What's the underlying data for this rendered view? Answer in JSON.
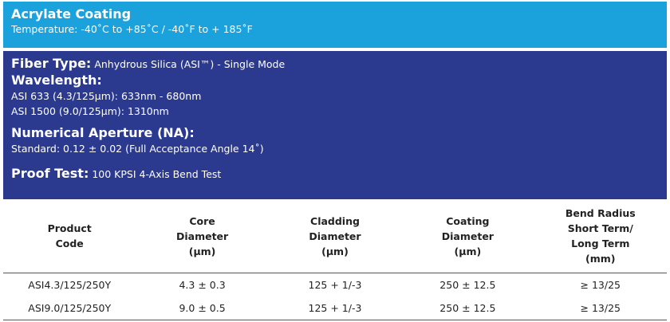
{
  "header": {
    "title": "Acrylate Coating",
    "subtitle": "Temperature:  -40˚C to +85˚C / -40˚F to + 185˚F"
  },
  "specs": {
    "fiber_type": {
      "label": "Fiber Type:",
      "value": "Anhydrous Silica (ASI™) - Single Mode"
    },
    "wavelength": {
      "label": "Wavelength:",
      "lines": [
        "ASI 633 (4.3/125μm):  633nm - 680nm",
        "ASI 1500 (9.0/125μm):  1310nm"
      ]
    },
    "numerical_aperture": {
      "label": "Numerical Aperture (NA):",
      "lines": [
        "Standard: 0.12 ± 0.02 (Full Acceptance Angle 14˚)"
      ]
    },
    "proof_test": {
      "label": "Proof Test:",
      "value": "100 KPSI 4-Axis Bend Test"
    }
  },
  "table": {
    "columns": [
      [
        "Product",
        "Code"
      ],
      [
        "Core",
        "Diameter",
        "(μm)"
      ],
      [
        "Cladding",
        "Diameter",
        "(μm)"
      ],
      [
        "Coating",
        "Diameter",
        "(μm)"
      ],
      [
        "Bend Radius",
        "Short Term/",
        "Long Term",
        "(mm)"
      ]
    ],
    "rows": [
      [
        "ASI4.3/125/250Y",
        "4.3 ± 0.3",
        "125 + 1/-3",
        "250 ± 12.5",
        "≥ 13/25"
      ],
      [
        "ASI9.0/125/250Y",
        "9.0 ± 0.5",
        "125 + 1/-3",
        "250 ± 12.5",
        "≥ 13/25"
      ]
    ]
  }
}
